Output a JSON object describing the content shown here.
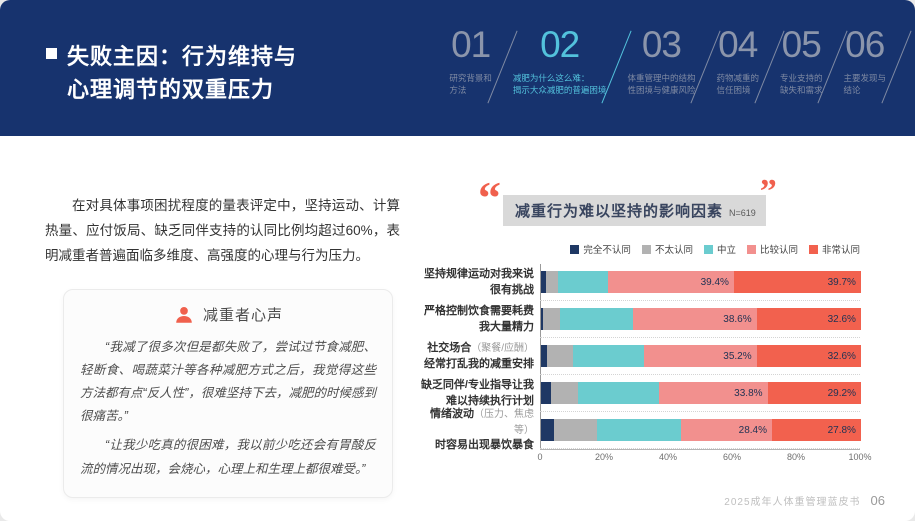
{
  "header": {
    "title_line1": "失败主因：行为维持与",
    "title_line2": "心理调节的双重压力",
    "nav": [
      {
        "num": "01",
        "label": "研究背景和\n方法",
        "active": false
      },
      {
        "num": "02",
        "label": "减肥为什么这么难：\n揭示大众减肥的普遍困境",
        "active": true
      },
      {
        "num": "03",
        "label": "体重管理中的结构\n性困境与健康风险",
        "active": false
      },
      {
        "num": "04",
        "label": "药物减重的\n信任困境",
        "active": false
      },
      {
        "num": "05",
        "label": "专业支持的\n缺失和需求",
        "active": false
      },
      {
        "num": "06",
        "label": "主要发现与\n结论",
        "active": false
      }
    ]
  },
  "left": {
    "intro": "在对具体事项困扰程度的量表评定中，坚持运动、计算热量、应付饭局、缺乏同伴支持的认同比例均超过60%，表明减重者普遍面临多维度、高强度的心理与行为压力。",
    "quote_title": "减重者心声",
    "quotes": [
      "“我减了很多次但是都失败了，尝试过节食减肥、轻断食、喝蔬菜汁等各种减肥方式之后，我觉得这些方法都有点“反人性”，很难坚持下去，减肥的时候感到很痛苦。”",
      "“让我少吃真的很困难，我以前少吃还会有胃酸反流的情况出现，会烧心，心理上和生理上都很难受。”"
    ]
  },
  "chart_header": {
    "open_quote": "“",
    "close_quote": "”"
  },
  "chart_data": {
    "type": "bar",
    "stacked": true,
    "horizontal": true,
    "title": "减重行为难以坚持的影响因素",
    "sample_label": "N=619",
    "legend_position": "top-right",
    "grid": "dotted-row-separators",
    "xlim": [
      0,
      100
    ],
    "x_ticks": [
      "0",
      "20%",
      "40%",
      "60%",
      "80%",
      "100%"
    ],
    "legend": [
      "完全不认同",
      "不太认同",
      "中立",
      "比较认同",
      "非常认同"
    ],
    "colors": [
      "#1f3864",
      "#b2b2b2",
      "#6bcccf",
      "#f2908e",
      "#f2614e"
    ],
    "categories": [
      "坚持规律运动对我来说很有挑战",
      "严格控制饮食需要耗费我大量精力",
      "社交场合（聚餐/应酬）经常打乱我的减重安排",
      "缺乏同伴/专业指导让我难以持续执行计划",
      "情绪波动（压力、焦虑等）时容易出现暴饮暴食"
    ],
    "rows": [
      {
        "label_main": "坚持规律运动对我来说",
        "label_note": "",
        "label_line2": "很有挑战",
        "values": [
          1.6,
          3.7,
          15.6,
          39.4,
          39.7
        ],
        "shown_labels": [
          "",
          "",
          "",
          "39.4%",
          "39.7%"
        ]
      },
      {
        "label_main": "严格控制饮食需要耗费",
        "label_note": "",
        "label_line2": "我大量精力",
        "values": [
          0.6,
          5.2,
          23.0,
          38.6,
          32.6
        ],
        "shown_labels": [
          "",
          "",
          "",
          "38.6%",
          "32.6%"
        ]
      },
      {
        "label_main": "社交场合",
        "label_note": "（聚餐/应酬）",
        "label_line2": "经常打乱我的减重安排",
        "values": [
          2.0,
          8.1,
          22.1,
          35.2,
          32.6
        ],
        "shown_labels": [
          "",
          "",
          "",
          "35.2%",
          "32.6%"
        ]
      },
      {
        "label_main": "缺乏同伴/专业指导让我",
        "label_note": "",
        "label_line2": "难以持续执行计划",
        "values": [
          3.2,
          8.4,
          25.4,
          33.8,
          29.2
        ],
        "shown_labels": [
          "",
          "",
          "",
          "33.8%",
          "29.2%"
        ]
      },
      {
        "label_main": "情绪波动",
        "label_note": "（压力、焦虑等）",
        "label_line2": "时容易出现暴饮暴食",
        "values": [
          4.1,
          13.5,
          26.2,
          28.4,
          27.8
        ],
        "shown_labels": [
          "",
          "",
          "",
          "28.4%",
          "27.8%"
        ]
      }
    ]
  },
  "footer": {
    "book_title": "2025成年人体重管理蓝皮书",
    "page_number": "06"
  }
}
